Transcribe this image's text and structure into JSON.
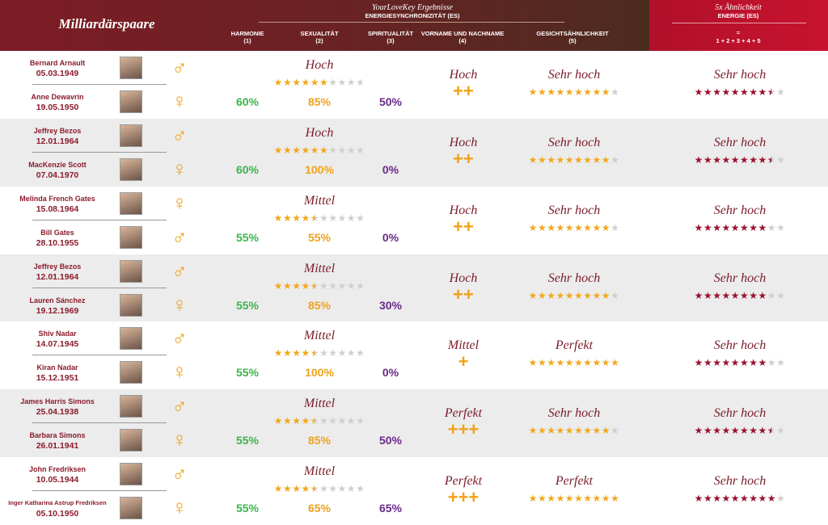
{
  "header": {
    "title": "Milliardärspaare",
    "results_title": "YourLoveKey Ergebnisse",
    "results_subtitle": "ENERGIESYNCHRONIZITÄT (ES)",
    "columns": [
      {
        "label": "HARMONIE",
        "number": "(1)"
      },
      {
        "label": "SEXUALITÄT",
        "number": "(2)"
      },
      {
        "label": "SPIRITUALITÄT",
        "number": "(3)"
      },
      {
        "label": "VORNAME UND NACHNAME",
        "number": "(4)"
      },
      {
        "label": "GESICHTSÄHNLICHKEIT",
        "number": "(5)"
      }
    ],
    "energy": {
      "title": "5x Ähnlichkeit",
      "subtitle": "ENERGIE (ES)",
      "equals": "=",
      "formula": "1 + 2 + 3 + 4 + 5"
    }
  },
  "stars_out_of": 10,
  "rows": [
    {
      "persons": [
        {
          "name": "Bernard Arnault",
          "date": "05.03.1949",
          "gender": "♂"
        },
        {
          "name": "Anne Dewavrin",
          "date": "19.05.1950",
          "gender": "♀"
        }
      ],
      "es_label": "Hoch",
      "es_stars": 6,
      "harmonie": "60%",
      "sexualitaet": "85%",
      "spiritualitaet": "50%",
      "name_label": "Hoch",
      "name_plus": "++",
      "face_label": "Sehr hoch",
      "face_stars": 9,
      "energy_label": "Sehr hoch",
      "energy_stars": 8.5
    },
    {
      "persons": [
        {
          "name": "Jeffrey Bezos",
          "date": "12.01.1964",
          "gender": "♂"
        },
        {
          "name": "MacKenzie Scott",
          "date": "07.04.1970",
          "gender": "♀"
        }
      ],
      "es_label": "Hoch",
      "es_stars": 6,
      "harmonie": "60%",
      "sexualitaet": "100%",
      "spiritualitaet": "0%",
      "name_label": "Hoch",
      "name_plus": "++",
      "face_label": "Sehr hoch",
      "face_stars": 9,
      "energy_label": "Sehr hoch",
      "energy_stars": 8.5
    },
    {
      "persons": [
        {
          "name": "Melinda French Gates",
          "date": "15.08.1964",
          "gender": "♀"
        },
        {
          "name": "Bill Gates",
          "date": "28.10.1955",
          "gender": "♂"
        }
      ],
      "es_label": "Mittel",
      "es_stars": 4.5,
      "harmonie": "55%",
      "sexualitaet": "55%",
      "spiritualitaet": "0%",
      "name_label": "Hoch",
      "name_plus": "++",
      "face_label": "Sehr hoch",
      "face_stars": 9,
      "energy_label": "Sehr hoch",
      "energy_stars": 8
    },
    {
      "persons": [
        {
          "name": "Jeffrey Bezos",
          "date": "12.01.1964",
          "gender": "♂"
        },
        {
          "name": "Lauren Sánchez",
          "date": "19.12.1969",
          "gender": "♀"
        }
      ],
      "es_label": "Mittel",
      "es_stars": 4.5,
      "harmonie": "55%",
      "sexualitaet": "85%",
      "spiritualitaet": "30%",
      "name_label": "Hoch",
      "name_plus": "++",
      "face_label": "Sehr hoch",
      "face_stars": 9,
      "energy_label": "Sehr hoch",
      "energy_stars": 8
    },
    {
      "persons": [
        {
          "name": "Shiv Nadar",
          "date": "14.07.1945",
          "gender": "♂"
        },
        {
          "name": "Kiran Nadar",
          "date": "15.12.1951",
          "gender": "♀"
        }
      ],
      "es_label": "Mittel",
      "es_stars": 4.5,
      "harmonie": "55%",
      "sexualitaet": "100%",
      "spiritualitaet": "0%",
      "name_label": "Mittel",
      "name_plus": "+",
      "face_label": "Perfekt",
      "face_stars": 10,
      "energy_label": "Sehr hoch",
      "energy_stars": 8
    },
    {
      "persons": [
        {
          "name": "James Harris Simons",
          "date": "25.04.1938",
          "gender": "♂"
        },
        {
          "name": "Barbara Simons",
          "date": "26.01.1941",
          "gender": "♀"
        }
      ],
      "es_label": "Mittel",
      "es_stars": 4.5,
      "harmonie": "55%",
      "sexualitaet": "85%",
      "spiritualitaet": "50%",
      "name_label": "Perfekt",
      "name_plus": "+++",
      "face_label": "Sehr hoch",
      "face_stars": 9,
      "energy_label": "Sehr hoch",
      "energy_stars": 8.5
    },
    {
      "persons": [
        {
          "name": "John Fredriksen",
          "date": "10.05.1944",
          "gender": "♂"
        },
        {
          "name": "Inger Katharina Astrup Fredriksen",
          "date": "05.10.1950",
          "gender": "♀"
        }
      ],
      "es_label": "Mittel",
      "es_stars": 4.5,
      "harmonie": "55%",
      "sexualitaet": "65%",
      "spiritualitaet": "65%",
      "name_label": "Perfekt",
      "name_plus": "+++",
      "face_label": "Perfekt",
      "face_stars": 10,
      "energy_label": "Sehr hoch",
      "energy_stars": 9
    }
  ]
}
